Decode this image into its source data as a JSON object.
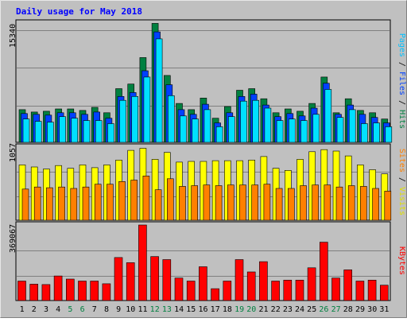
{
  "chart_data": [
    {
      "type": "bar",
      "title": "Daily usage for May 2018",
      "ylabel": "Pages / Files / Hits",
      "ylabel_parts": [
        "Pages",
        "Files",
        "Hits"
      ],
      "ylabel_sep": " / ",
      "y_max_label": "15340",
      "ylim": [
        0,
        15340
      ],
      "categories": [
        "1",
        "2",
        "3",
        "4",
        "5",
        "6",
        "7",
        "8",
        "9",
        "10",
        "11",
        "12",
        "13",
        "14",
        "15",
        "16",
        "17",
        "18",
        "19",
        "20",
        "21",
        "22",
        "23",
        "24",
        "25",
        "26",
        "27",
        "28",
        "29",
        "30",
        "31"
      ],
      "series": [
        {
          "name": "Hits",
          "color": "#008040",
          "values": [
            4200,
            3900,
            4000,
            4300,
            4300,
            4100,
            4500,
            3800,
            6900,
            7500,
            10900,
            15300,
            8600,
            5000,
            4200,
            5700,
            3100,
            4600,
            6700,
            6900,
            5600,
            3800,
            4300,
            4000,
            5000,
            8400,
            3800,
            5600,
            4100,
            3800,
            3000
          ]
        },
        {
          "name": "Files",
          "color": "#0040ff",
          "values": [
            3700,
            3600,
            3500,
            3800,
            3800,
            3600,
            3900,
            3100,
            5900,
            6400,
            9200,
            14200,
            7400,
            4200,
            3600,
            4900,
            2500,
            3800,
            5900,
            6200,
            4800,
            3300,
            3700,
            3400,
            4400,
            7600,
            3600,
            4800,
            3600,
            3200,
            2500
          ]
        },
        {
          "name": "Pages",
          "color": "#00e0ff",
          "values": [
            3000,
            2700,
            2600,
            3300,
            3100,
            2800,
            2800,
            2400,
            5400,
            5900,
            8400,
            13300,
            6000,
            3400,
            3000,
            4200,
            2000,
            3300,
            5300,
            5400,
            4400,
            2800,
            3000,
            2800,
            3600,
            6800,
            3200,
            4200,
            2400,
            2500,
            2000
          ]
        }
      ]
    },
    {
      "type": "bar",
      "ylabel": "Sites / Visits",
      "ylabel_parts": [
        "Sites",
        "Visits"
      ],
      "ylabel_sep": " / ",
      "y_max_label": "1057",
      "ylim": [
        0,
        1057
      ],
      "categories": [
        "1",
        "2",
        "3",
        "4",
        "5",
        "6",
        "7",
        "8",
        "9",
        "10",
        "11",
        "12",
        "13",
        "14",
        "15",
        "16",
        "17",
        "18",
        "19",
        "20",
        "21",
        "22",
        "23",
        "24",
        "25",
        "26",
        "27",
        "28",
        "29",
        "30",
        "31"
      ],
      "series": [
        {
          "name": "Visits",
          "color": "#ffff00",
          "values": [
            800,
            770,
            740,
            790,
            750,
            800,
            760,
            800,
            870,
            1010,
            1040,
            880,
            980,
            840,
            850,
            850,
            860,
            860,
            860,
            870,
            920,
            750,
            720,
            880,
            990,
            1020,
            1000,
            930,
            800,
            730,
            670
          ]
        },
        {
          "name": "Sites",
          "color": "#ff8000",
          "values": [
            450,
            480,
            470,
            480,
            460,
            480,
            520,
            520,
            560,
            580,
            640,
            440,
            600,
            490,
            500,
            510,
            500,
            510,
            510,
            510,
            520,
            460,
            460,
            500,
            510,
            510,
            480,
            500,
            490,
            460,
            420
          ]
        }
      ]
    },
    {
      "type": "bar",
      "ylabel": "KBytes",
      "ylabel_parts": [
        "KBytes"
      ],
      "ylabel_sep": "",
      "y_max_label": "369067",
      "ylim": [
        0,
        369067
      ],
      "categories": [
        "1",
        "2",
        "3",
        "4",
        "5",
        "6",
        "7",
        "8",
        "9",
        "10",
        "11",
        "12",
        "13",
        "14",
        "15",
        "16",
        "17",
        "18",
        "19",
        "20",
        "21",
        "22",
        "23",
        "24",
        "25",
        "26",
        "27",
        "28",
        "29",
        "30",
        "31"
      ],
      "series": [
        {
          "name": "KBytes",
          "color": "#ff0000",
          "values": [
            95000,
            80000,
            78000,
            120000,
            105000,
            95000,
            95000,
            82000,
            210000,
            185000,
            369000,
            215000,
            200000,
            110000,
            95000,
            165000,
            58000,
            95000,
            200000,
            140000,
            190000,
            95000,
            100000,
            100000,
            160000,
            285000,
            110000,
            150000,
            95000,
            100000,
            75000
          ]
        }
      ]
    }
  ],
  "weekend_days": [
    "5",
    "6",
    "12",
    "13",
    "19",
    "20",
    "26",
    "27"
  ],
  "colors": {
    "background": "#c0c0c0",
    "frame_border": "#808080",
    "plot_border": "#000000",
    "grid": "#808080",
    "title_text": "#0000ff",
    "weekday_text": "#000000",
    "weekend_text": "#008040"
  }
}
